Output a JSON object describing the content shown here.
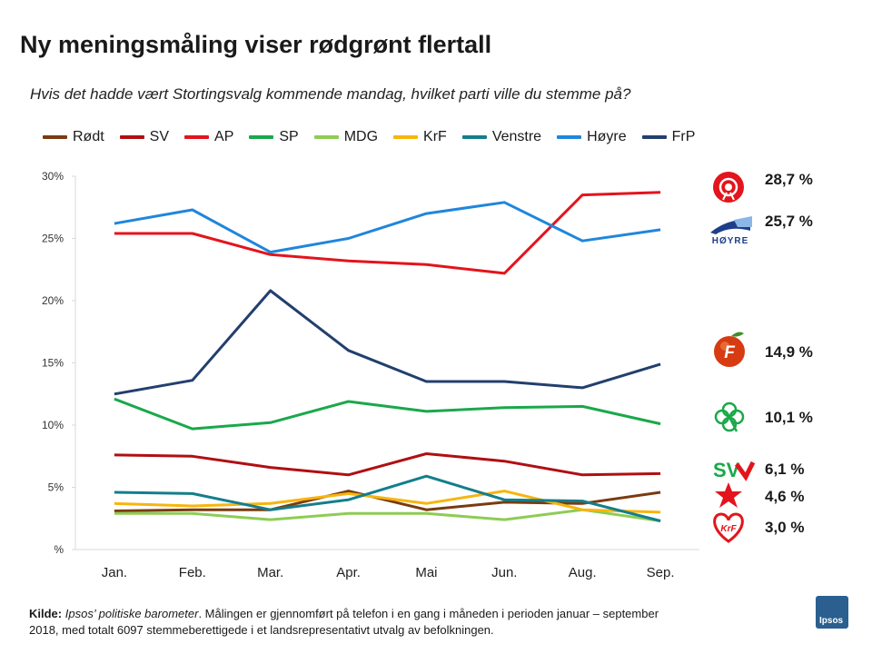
{
  "title": "Ny meningsmåling viser rødgrønt flertall",
  "subtitle": "Hvis det hadde vært Stortingsvalg kommende mandag, hvilket parti ville du stemme på?",
  "source": {
    "label": "Kilde:",
    "name": "Ipsos’ politiske barometer",
    "text": ". Målingen er gjennomført på telefon i en gang i måneden i perioden januar – september 2018, med totalt 6097 stemmeberettigede i et landsrepresentativt utvalg av befolkningen."
  },
  "brand": "Ipsos",
  "chart_data": {
    "type": "line",
    "title": "Ny meningsmåling viser rødgrønt flertall",
    "xlabel": "",
    "ylabel": "",
    "ylim": [
      0,
      30
    ],
    "yticks": [
      0,
      5,
      10,
      15,
      20,
      25,
      30
    ],
    "ytick_labels": [
      "%",
      "5%",
      "10%",
      "15%",
      "20%",
      "25%",
      "30%"
    ],
    "categories": [
      "Jan.",
      "Feb.",
      "Mar.",
      "Apr.",
      "Mai",
      "Jun.",
      "Aug.",
      "Sep."
    ],
    "legend_position": "top",
    "series": [
      {
        "name": "Rødt",
        "color": "#7a3b10",
        "values": [
          3.1,
          3.2,
          3.2,
          4.7,
          3.2,
          3.8,
          3.7,
          4.6
        ]
      },
      {
        "name": "SV",
        "color": "#b00f12",
        "values": [
          7.6,
          7.5,
          6.6,
          6.0,
          7.7,
          7.1,
          6.0,
          6.1
        ]
      },
      {
        "name": "AP",
        "color": "#e3141c",
        "values": [
          25.4,
          25.4,
          23.7,
          23.2,
          22.9,
          22.2,
          28.5,
          28.7
        ]
      },
      {
        "name": "SP",
        "color": "#1aa84a",
        "values": [
          12.1,
          9.7,
          10.2,
          11.9,
          11.1,
          11.4,
          11.5,
          10.1
        ]
      },
      {
        "name": "MDG",
        "color": "#8dcc55",
        "values": [
          2.9,
          2.9,
          2.4,
          2.9,
          2.9,
          2.4,
          3.2,
          2.3
        ]
      },
      {
        "name": "KrF",
        "color": "#f7b50e",
        "values": [
          3.7,
          3.5,
          3.7,
          4.5,
          3.7,
          4.7,
          3.2,
          3.0
        ]
      },
      {
        "name": "Venstre",
        "color": "#137e8c",
        "values": [
          4.6,
          4.5,
          3.2,
          4.0,
          5.9,
          4.0,
          3.9,
          2.3
        ]
      },
      {
        "name": "Høyre",
        "color": "#1f86dc",
        "values": [
          26.2,
          27.3,
          23.9,
          25.0,
          27.0,
          27.9,
          24.8,
          25.7
        ]
      },
      {
        "name": "FrP",
        "color": "#223f6e",
        "values": [
          12.5,
          13.6,
          20.8,
          16.0,
          13.5,
          13.5,
          13.0,
          14.9
        ]
      }
    ],
    "latest_labels": [
      {
        "party": "AP",
        "value": 28.7,
        "text": "28,7 %",
        "logo": "ap-rose-logo"
      },
      {
        "party": "Høyre",
        "value": 25.7,
        "text": "25,7 %",
        "logo": "hoyre-logo",
        "logo_text": "HØYRE"
      },
      {
        "party": "FrP",
        "value": 14.9,
        "text": "14,9 %",
        "logo": "frp-apple-logo",
        "logo_text": "F"
      },
      {
        "party": "SP",
        "value": 10.1,
        "text": "10,1 %",
        "logo": "sp-clover-logo"
      },
      {
        "party": "SV",
        "value": 6.1,
        "text": "6,1 %",
        "logo": "sv-logo",
        "logo_text": "SV"
      },
      {
        "party": "Rødt",
        "value": 4.6,
        "text": "4,6 %",
        "logo": "rodt-star-logo"
      },
      {
        "party": "KrF",
        "value": 3.0,
        "text": "3,0 %",
        "logo": "krf-heart-logo",
        "logo_text": "KrF"
      }
    ]
  }
}
